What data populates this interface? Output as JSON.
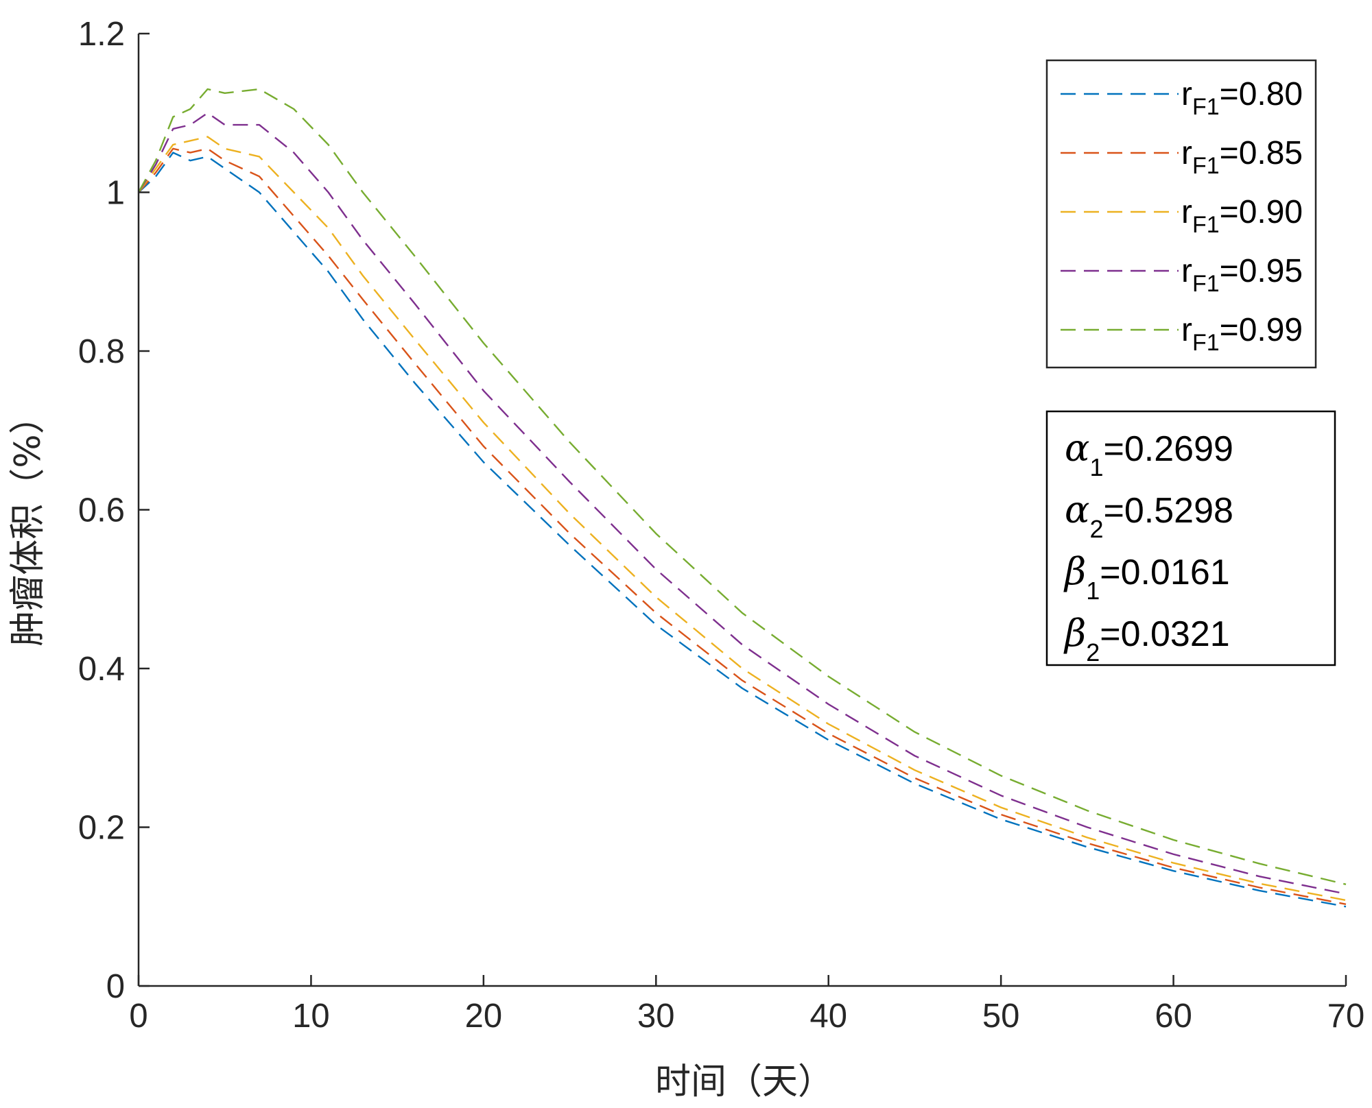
{
  "chart_data": {
    "type": "line",
    "title": "",
    "xlabel": "时间（天）",
    "ylabel": "肿瘤体积（%）",
    "xlim": [
      0,
      70
    ],
    "ylim": [
      0,
      1.2
    ],
    "xticks": [
      "0",
      "10",
      "20",
      "30",
      "40",
      "50",
      "60",
      "70"
    ],
    "yticks": [
      "0",
      "0.2",
      "0.4",
      "0.6",
      "0.8",
      "1",
      "1.2"
    ],
    "grid": false,
    "legend_position": "top-right",
    "x": [
      0,
      1,
      2,
      3,
      4,
      5,
      7,
      9,
      11,
      13,
      16,
      20,
      25,
      30,
      35,
      40,
      45,
      50,
      55,
      60,
      65,
      70
    ],
    "series": [
      {
        "name": "r_F1=0.80",
        "label_main": "r",
        "label_sub": "F1",
        "label_value": "=0.80",
        "color": "#0072BD",
        "values": [
          1.0,
          1.02,
          1.05,
          1.04,
          1.045,
          1.03,
          1.0,
          0.95,
          0.9,
          0.84,
          0.76,
          0.66,
          0.555,
          0.455,
          0.375,
          0.31,
          0.255,
          0.21,
          0.175,
          0.145,
          0.12,
          0.1
        ]
      },
      {
        "name": "r_F1=0.85",
        "label_main": "r",
        "label_sub": "F1",
        "label_value": "=0.85",
        "color": "#D95319",
        "values": [
          1.0,
          1.025,
          1.055,
          1.05,
          1.055,
          1.04,
          1.02,
          0.97,
          0.92,
          0.865,
          0.785,
          0.68,
          0.57,
          0.47,
          0.385,
          0.318,
          0.262,
          0.216,
          0.18,
          0.149,
          0.124,
          0.103
        ]
      },
      {
        "name": "r_F1=0.90",
        "label_main": "r",
        "label_sub": "F1",
        "label_value": "=0.90",
        "color": "#EDB120",
        "values": [
          1.0,
          1.03,
          1.06,
          1.065,
          1.07,
          1.055,
          1.045,
          1.0,
          0.955,
          0.895,
          0.815,
          0.71,
          0.595,
          0.49,
          0.4,
          0.33,
          0.272,
          0.225,
          0.187,
          0.155,
          0.129,
          0.108
        ]
      },
      {
        "name": "r_F1=0.95",
        "label_main": "r",
        "label_sub": "F1",
        "label_value": "=0.95",
        "color": "#7E2F8E",
        "values": [
          1.0,
          1.035,
          1.08,
          1.085,
          1.1,
          1.085,
          1.085,
          1.05,
          1.0,
          0.94,
          0.86,
          0.75,
          0.635,
          0.525,
          0.43,
          0.355,
          0.29,
          0.24,
          0.2,
          0.166,
          0.138,
          0.116
        ]
      },
      {
        "name": "r_F1=0.99",
        "label_main": "r",
        "label_sub": "F1",
        "label_value": "=0.99",
        "color": "#77AC30",
        "values": [
          1.0,
          1.04,
          1.095,
          1.105,
          1.13,
          1.125,
          1.13,
          1.105,
          1.06,
          1.0,
          0.92,
          0.81,
          0.685,
          0.57,
          0.47,
          0.39,
          0.32,
          0.265,
          0.221,
          0.184,
          0.154,
          0.128
        ]
      }
    ],
    "annotations": [
      {
        "symbol": "α",
        "sub": "1",
        "value": "=0.2699"
      },
      {
        "symbol": "α",
        "sub": "2",
        "value": "=0.5298"
      },
      {
        "symbol": "β",
        "sub": "1",
        "value": "=0.0161"
      },
      {
        "symbol": "β",
        "sub": "2",
        "value": "=0.0321"
      }
    ]
  }
}
